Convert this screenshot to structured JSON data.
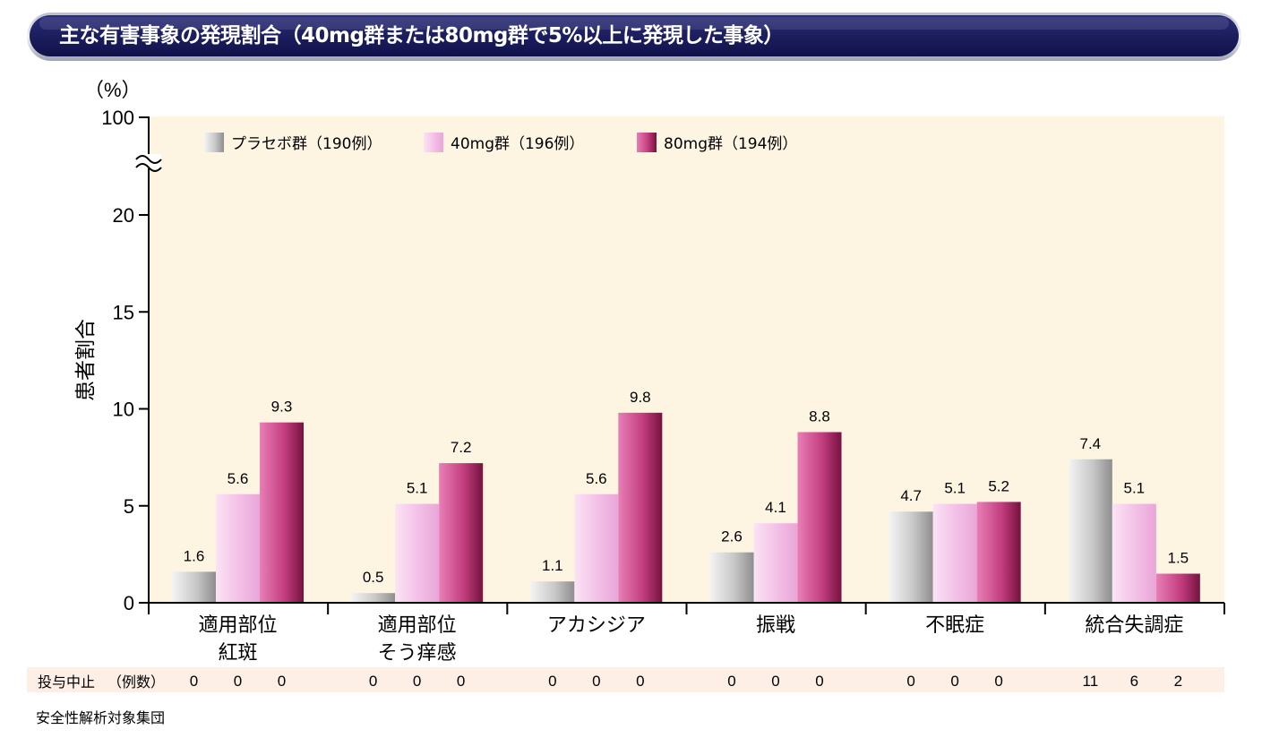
{
  "header": {
    "title": "主な有害事象の発現割合（40mg群または80mg群で5%以上に発現した事象）"
  },
  "chart_data": {
    "type": "bar",
    "unit_label": "（%）",
    "ylabel": "患者割合",
    "y_ticks": [
      "0",
      "5",
      "10",
      "15",
      "20",
      "100"
    ],
    "y_axis_break": true,
    "categories": [
      [
        "適用部位",
        "紅斑"
      ],
      [
        "適用部位",
        "そう痒感"
      ],
      [
        "アカシジア"
      ],
      [
        "振戦"
      ],
      [
        "不眠症"
      ],
      [
        "統合失調症"
      ]
    ],
    "series": [
      {
        "name": "プラセボ群（190例）",
        "values": [
          1.6,
          0.5,
          1.1,
          2.6,
          4.7,
          7.4
        ],
        "labels": [
          "1.6",
          "0.5",
          "1.1",
          "2.6",
          "4.7",
          "7.4"
        ],
        "color": "#a8a8a8"
      },
      {
        "name": "40mg群（196例）",
        "values": [
          5.6,
          5.1,
          5.6,
          4.1,
          5.1,
          5.1
        ],
        "labels": [
          "5.6",
          "5.1",
          "5.6",
          "4.1",
          "5.1",
          "5.1"
        ],
        "color": "#f0b8e2"
      },
      {
        "name": "80mg群（194例）",
        "values": [
          9.3,
          7.2,
          9.8,
          8.8,
          5.2,
          1.5
        ],
        "labels": [
          "9.3",
          "7.2",
          "9.8",
          "8.8",
          "5.2",
          "1.5"
        ],
        "color": "#c23c7c"
      }
    ],
    "legend": "top-left",
    "plot_background": "#fdf5e2"
  },
  "discontinuation": {
    "label": "投与中止",
    "sublabel": "（例数）",
    "values": [
      [
        "0",
        "0",
        "0"
      ],
      [
        "0",
        "0",
        "0"
      ],
      [
        "0",
        "0",
        "0"
      ],
      [
        "0",
        "0",
        "0"
      ],
      [
        "0",
        "0",
        "0"
      ],
      [
        "11",
        "6",
        "2"
      ]
    ],
    "row_color": "#fdeee6"
  },
  "footnote": "安全性解析対象集団"
}
